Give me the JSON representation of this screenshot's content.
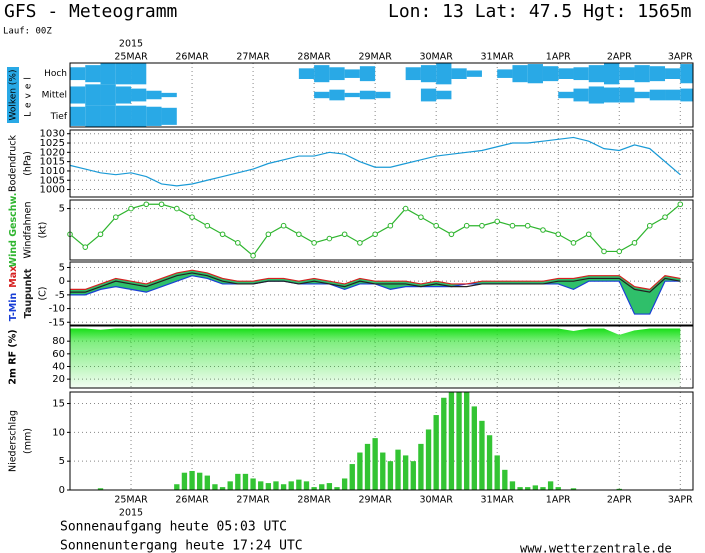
{
  "header": {
    "title": "GFS - Meteogramm",
    "location": "Lon: 13 Lat: 47.5 Hgt: 1565m",
    "run": "Lauf: 00Z"
  },
  "chart_data": [
    {
      "type": "cloud_cover",
      "ylabel": [
        "Wolken (%)",
        "Level"
      ],
      "xlim": [
        0,
        245
      ],
      "xaxis_position": "top",
      "year_label": "2015",
      "xticks": [
        {
          "value": 24,
          "label": "25MAR"
        },
        {
          "value": 48,
          "label": "26MAR"
        },
        {
          "value": 72,
          "label": "27MAR"
        },
        {
          "value": 96,
          "label": "28MAR"
        },
        {
          "value": 120,
          "label": "29MAR"
        },
        {
          "value": 144,
          "label": "30MAR"
        },
        {
          "value": 168,
          "label": "31MAR"
        },
        {
          "value": 192,
          "label": "1APR"
        },
        {
          "value": 216,
          "label": "2APR"
        },
        {
          "value": 240,
          "label": "3APR"
        }
      ],
      "x": [
        0,
        6,
        12,
        18,
        24,
        30,
        36,
        42,
        48,
        54,
        60,
        66,
        72,
        78,
        84,
        90,
        96,
        102,
        108,
        114,
        120,
        126,
        132,
        138,
        144,
        150,
        156,
        162,
        168,
        174,
        180,
        186,
        192,
        198,
        204,
        210,
        216,
        222,
        228,
        234,
        240
      ],
      "series": [
        {
          "name": "Hoch",
          "color": "#29a9e6",
          "values": [
            60,
            80,
            100,
            100,
            100,
            0,
            0,
            0,
            0,
            0,
            0,
            0,
            0,
            0,
            0,
            50,
            80,
            60,
            40,
            70,
            0,
            0,
            60,
            80,
            100,
            50,
            30,
            0,
            40,
            80,
            90,
            70,
            50,
            60,
            80,
            100,
            60,
            80,
            70,
            50,
            90
          ]
        },
        {
          "name": "Mittel",
          "color": "#29a9e6",
          "values": [
            80,
            100,
            100,
            80,
            60,
            40,
            20,
            0,
            0,
            0,
            0,
            0,
            0,
            0,
            0,
            0,
            30,
            50,
            20,
            40,
            30,
            0,
            0,
            60,
            40,
            0,
            0,
            0,
            0,
            0,
            0,
            0,
            30,
            60,
            80,
            70,
            70,
            30,
            50,
            50,
            60
          ]
        },
        {
          "name": "Tief",
          "color": "#29a9e6",
          "values": [
            90,
            100,
            100,
            100,
            100,
            90,
            80,
            0,
            0,
            0,
            0,
            0,
            0,
            0,
            0,
            0,
            0,
            0,
            0,
            0,
            0,
            0,
            0,
            0,
            0,
            0,
            0,
            0,
            0,
            0,
            0,
            0,
            0,
            0,
            0,
            0,
            0,
            0,
            0,
            0,
            0
          ]
        }
      ]
    },
    {
      "type": "line",
      "ylabel": [
        "Bodendruck",
        "(hPa)"
      ],
      "xlim": [
        0,
        245
      ],
      "xticks": [
        24,
        48,
        72,
        96,
        120,
        144,
        168,
        192,
        216,
        240
      ],
      "ylim": [
        996,
        1032
      ],
      "yticks": [
        1000,
        1005,
        1010,
        1015,
        1020,
        1025,
        1030
      ],
      "x": [
        0,
        6,
        12,
        18,
        24,
        30,
        36,
        42,
        48,
        54,
        60,
        66,
        72,
        78,
        84,
        90,
        96,
        102,
        108,
        114,
        120,
        126,
        132,
        138,
        144,
        150,
        156,
        162,
        168,
        174,
        180,
        186,
        192,
        198,
        204,
        210,
        216,
        222,
        228,
        234,
        240
      ],
      "series": [
        {
          "color": "#1a9ad6",
          "values": [
            1013,
            1011,
            1009,
            1008,
            1009,
            1007,
            1003,
            1002,
            1003,
            1005,
            1007,
            1009,
            1011,
            1014,
            1016,
            1018,
            1018,
            1020,
            1019,
            1015,
            1012,
            1012,
            1014,
            1016,
            1018,
            1019,
            1020,
            1021,
            1023,
            1025,
            1025,
            1026,
            1027,
            1028,
            1026,
            1022,
            1021,
            1024,
            1022,
            1015,
            1008
          ]
        }
      ]
    },
    {
      "type": "line",
      "ylabel": [
        "Windfahnen",
        "(kt)"
      ],
      "markers": true,
      "xlim": [
        0,
        245
      ],
      "xticks": [
        24,
        48,
        72,
        96,
        120,
        144,
        168,
        192,
        216,
        240
      ],
      "ylim": [
        -1,
        6
      ],
      "yticks": [
        5
      ],
      "x": [
        0,
        6,
        12,
        18,
        24,
        30,
        36,
        42,
        48,
        54,
        60,
        66,
        72,
        78,
        84,
        90,
        96,
        102,
        108,
        114,
        120,
        126,
        132,
        138,
        144,
        150,
        156,
        162,
        168,
        174,
        180,
        186,
        192,
        198,
        204,
        210,
        216,
        222,
        228,
        234,
        240
      ],
      "series": [
        {
          "name": "Wind Geschw.",
          "color": "#2fb52f",
          "values": [
            2,
            0.5,
            2,
            4,
            5,
            5.5,
            5.5,
            5,
            4,
            3,
            2,
            1,
            -0.5,
            2,
            3,
            2,
            1,
            1.5,
            2,
            1,
            2,
            3,
            5,
            4,
            3,
            2,
            3,
            3,
            3.5,
            3,
            3,
            2.5,
            2,
            1,
            2,
            0,
            0,
            1,
            3,
            4,
            5.5
          ]
        }
      ]
    },
    {
      "type": "line",
      "ylabel": [
        "(C)"
      ],
      "fill_between": [
        0,
        1
      ],
      "fill_color": "#2fbf6a",
      "xlim": [
        0,
        245
      ],
      "xticks": [
        24,
        48,
        72,
        96,
        120,
        144,
        168,
        192,
        216,
        240
      ],
      "ylim": [
        -16,
        7
      ],
      "yticks": [
        5,
        0,
        -5,
        -10,
        -15
      ],
      "x": [
        0,
        6,
        12,
        18,
        24,
        30,
        36,
        42,
        48,
        54,
        60,
        66,
        72,
        78,
        84,
        90,
        96,
        102,
        108,
        114,
        120,
        126,
        132,
        138,
        144,
        150,
        156,
        162,
        168,
        174,
        180,
        186,
        192,
        198,
        204,
        210,
        216,
        222,
        228,
        234,
        240
      ],
      "series": [
        {
          "name": "T-Min",
          "color": "#1a3fd6",
          "values": [
            -5,
            -5,
            -3,
            -2,
            -3,
            -4,
            -2,
            0,
            2,
            1,
            -1,
            -1,
            -1,
            0,
            0,
            -1,
            -1,
            -1,
            -3,
            -1,
            -1,
            -3,
            -2,
            -2,
            -2,
            -2,
            -1,
            -1,
            -1,
            -1,
            -1,
            -1,
            -1,
            -3,
            0,
            0,
            0,
            -12,
            -12,
            0,
            0
          ]
        },
        {
          "name": "Max",
          "color": "#d62020",
          "values": [
            -3,
            -3,
            -1,
            1,
            0,
            -1,
            1,
            3,
            4,
            3,
            1,
            0,
            0,
            1,
            1,
            0,
            1,
            0,
            -1,
            1,
            0,
            0,
            0,
            -1,
            0,
            -1,
            -1,
            0,
            0,
            0,
            0,
            0,
            1,
            1,
            2,
            2,
            2,
            -2,
            -3,
            2,
            1
          ]
        },
        {
          "name": "Taupunkt",
          "color": "#222222",
          "values": [
            -4,
            -4,
            -2,
            0,
            -1,
            -2,
            0,
            2,
            3,
            2,
            0,
            -1,
            -1,
            0,
            0,
            -1,
            0,
            -1,
            -2,
            0,
            -1,
            -1,
            -1,
            -2,
            -1,
            -2,
            -2,
            -1,
            -1,
            -1,
            -1,
            -1,
            0,
            0,
            1,
            1,
            1,
            -3,
            -4,
            1,
            0
          ]
        }
      ]
    },
    {
      "type": "area",
      "ylabel": [
        "2m RF (%)"
      ],
      "color": "#18e018",
      "xlim": [
        0,
        245
      ],
      "xticks": [
        24,
        48,
        72,
        96,
        120,
        144,
        168,
        192,
        216,
        240
      ],
      "ylim": [
        6,
        104
      ],
      "yticks": [
        20,
        40,
        60,
        80
      ],
      "x": [
        0,
        6,
        12,
        18,
        24,
        30,
        36,
        42,
        48,
        54,
        60,
        66,
        72,
        78,
        84,
        90,
        96,
        102,
        108,
        114,
        120,
        126,
        132,
        138,
        144,
        150,
        156,
        162,
        168,
        174,
        180,
        186,
        192,
        198,
        204,
        210,
        216,
        222,
        228,
        234,
        240
      ],
      "values": [
        100,
        100,
        98,
        100,
        100,
        100,
        100,
        100,
        100,
        100,
        100,
        100,
        100,
        100,
        100,
        100,
        100,
        100,
        100,
        100,
        100,
        100,
        100,
        100,
        100,
        100,
        100,
        100,
        100,
        100,
        100,
        100,
        100,
        96,
        100,
        100,
        90,
        97,
        100,
        100,
        100
      ]
    },
    {
      "type": "bar",
      "ylabel": [
        "Niederschlag",
        "(mm)"
      ],
      "color": "#33c433",
      "xlim": [
        0,
        245
      ],
      "xaxis_position": "bottom",
      "year_label": "2015",
      "xticks": [
        {
          "value": 24,
          "label": "25MAR"
        },
        {
          "value": 48,
          "label": "26MAR"
        },
        {
          "value": 72,
          "label": "27MAR"
        },
        {
          "value": 96,
          "label": "28MAR"
        },
        {
          "value": 120,
          "label": "29MAR"
        },
        {
          "value": 144,
          "label": "30MAR"
        },
        {
          "value": 168,
          "label": "31MAR"
        },
        {
          "value": 192,
          "label": "1APR"
        },
        {
          "value": 216,
          "label": "2APR"
        },
        {
          "value": 240,
          "label": "3APR"
        }
      ],
      "ylim": [
        0,
        17
      ],
      "yticks": [
        0,
        5,
        10,
        15
      ],
      "x": [
        0,
        3,
        6,
        9,
        12,
        15,
        18,
        21,
        24,
        27,
        30,
        33,
        36,
        39,
        42,
        45,
        48,
        51,
        54,
        57,
        60,
        63,
        66,
        69,
        72,
        75,
        78,
        81,
        84,
        87,
        90,
        93,
        96,
        99,
        102,
        105,
        108,
        111,
        114,
        117,
        120,
        123,
        126,
        129,
        132,
        135,
        138,
        141,
        144,
        147,
        150,
        153,
        156,
        159,
        162,
        165,
        168,
        171,
        174,
        177,
        180,
        183,
        186,
        189,
        192,
        195,
        198,
        201,
        204,
        207,
        210,
        213,
        216,
        219,
        222,
        225,
        228,
        231,
        234,
        237,
        240,
        243
      ],
      "values": [
        0,
        0,
        0,
        0,
        0.3,
        0,
        0,
        0,
        0,
        0,
        0,
        0,
        0,
        0,
        1,
        3,
        3.3,
        3,
        2.5,
        1,
        0.5,
        1.5,
        2.8,
        2.8,
        2,
        1.5,
        1.2,
        1.5,
        1,
        1.5,
        1.8,
        1.5,
        0.5,
        1,
        1.2,
        0.5,
        2,
        4.5,
        6.5,
        8,
        9,
        6.5,
        5,
        7,
        6,
        5,
        8,
        10.5,
        13,
        16,
        17,
        17,
        17,
        14.5,
        12,
        9.5,
        6,
        3.5,
        1.5,
        0.5,
        0.5,
        0.8,
        0.5,
        1.5,
        0.5,
        0,
        0.3,
        0,
        0,
        0,
        0,
        0,
        0.2,
        0,
        0,
        0,
        0,
        0,
        0,
        0,
        0,
        0
      ]
    }
  ],
  "footer": {
    "sunrise": "Sonnenaufgang heute 05:03 UTC",
    "sunset": "Sonnenuntergang heute 17:24 UTC",
    "source": "www.wetterzentrale.de"
  }
}
